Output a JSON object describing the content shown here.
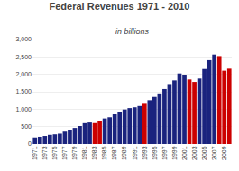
{
  "chart_data": {
    "type": "bar",
    "title": "Federal Revenues 1971 - 2010",
    "subtitle": "in billions",
    "categories": [
      "1971",
      null,
      "1973",
      null,
      "1975",
      null,
      "1977",
      null,
      "1979",
      null,
      "1981",
      null,
      "1983",
      null,
      "1985",
      null,
      "1987",
      null,
      "1989",
      null,
      "1991",
      null,
      "1993",
      null,
      "1995",
      null,
      "1997",
      null,
      "1999",
      null,
      "2001",
      null,
      "2003",
      null,
      "2005",
      null,
      "2007",
      null,
      "2009",
      null
    ],
    "values": [
      188,
      208,
      232,
      264,
      279,
      298,
      356,
      400,
      463,
      517,
      599,
      618,
      601,
      666,
      734,
      769,
      854,
      909,
      991,
      1032,
      1055,
      1091,
      1154,
      1258,
      1352,
      1453,
      1579,
      1722,
      1827,
      2025,
      1991,
      1853,
      1783,
      1880,
      2154,
      2407,
      2568,
      2524,
      2105,
      2163
    ],
    "colors": [
      "#1a237e",
      "#1a237e",
      "#1a237e",
      "#1a237e",
      "#1a237e",
      "#1a237e",
      "#1a237e",
      "#1a237e",
      "#1a237e",
      "#1a237e",
      "#1a237e",
      "#1a237e",
      "#cc0000",
      "#cc0000",
      "#1a237e",
      "#1a237e",
      "#1a237e",
      "#1a237e",
      "#1a237e",
      "#1a237e",
      "#1a237e",
      "#1a237e",
      "#cc0000",
      "#1a237e",
      "#1a237e",
      "#1a237e",
      "#1a237e",
      "#1a237e",
      "#1a237e",
      "#1a237e",
      "#1a237e",
      "#cc0000",
      "#cc0000",
      "#1a237e",
      "#1a237e",
      "#1a237e",
      "#1a237e",
      "#cc0000",
      "#cc0000",
      "#cc0000"
    ],
    "ylim": [
      0,
      3000
    ],
    "yticks": [
      0,
      500,
      {
        "value": 1000,
        "label": "1,000"
      },
      {
        "value": 1500,
        "label": "1,500"
      },
      {
        "value": 2000,
        "label": "2,000"
      },
      {
        "value": 2500,
        "label": "2,500"
      },
      {
        "value": 3000,
        "label": "3,000"
      }
    ],
    "grid": true
  }
}
